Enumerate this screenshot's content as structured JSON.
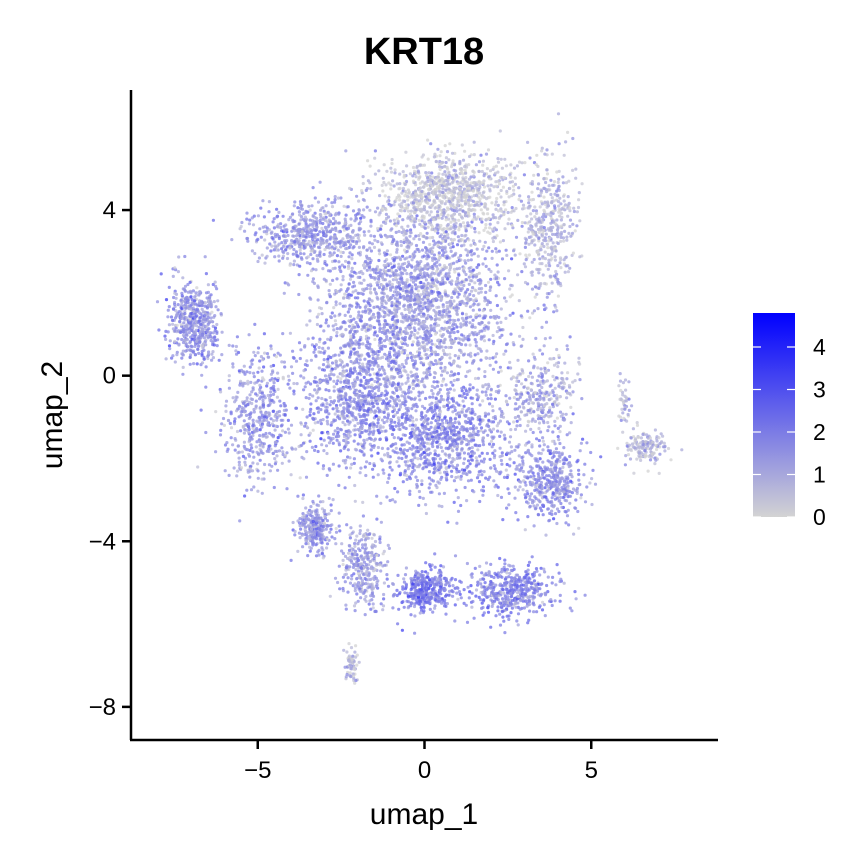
{
  "chart_data": {
    "type": "scatter",
    "title": "KRT18",
    "xlabel": "umap_1",
    "ylabel": "umap_2",
    "xlim": [
      -8.8,
      8.8
    ],
    "ylim": [
      -8.8,
      6.9
    ],
    "xticks": [
      -5,
      0,
      5
    ],
    "xtick_labels": [
      "−5",
      "0",
      "5"
    ],
    "yticks": [
      -8,
      -4,
      0,
      4
    ],
    "ytick_labels": [
      "−8",
      "−4",
      "0",
      "4"
    ],
    "grid": false,
    "legend": {
      "placement": "right",
      "type": "continuous colorbar",
      "range": [
        0,
        4.8
      ],
      "ticks": [
        0,
        1,
        2,
        3,
        4
      ],
      "tick_labels": [
        "0",
        "1",
        "2",
        "3",
        "4"
      ],
      "low_color": "#d3d3d3",
      "high_color": "#0000ff"
    },
    "clusters": [
      {
        "center": [
          -0.2,
          1.8
        ],
        "spread": [
          2.6,
          2.2
        ],
        "n": 2200,
        "expr": 1.3
      },
      {
        "center": [
          0.8,
          4.4
        ],
        "spread": [
          1.8,
          0.9
        ],
        "n": 800,
        "expr": 0.3
      },
      {
        "center": [
          3.7,
          3.6
        ],
        "spread": [
          0.8,
          1.5
        ],
        "n": 400,
        "expr": 0.8
      },
      {
        "center": [
          -3.5,
          3.4
        ],
        "spread": [
          1.5,
          0.7
        ],
        "n": 500,
        "expr": 1.4
      },
      {
        "center": [
          -6.9,
          1.3
        ],
        "spread": [
          0.7,
          0.9
        ],
        "n": 500,
        "expr": 1.5
      },
      {
        "center": [
          -5.0,
          -1.0
        ],
        "spread": [
          1.0,
          1.4
        ],
        "n": 450,
        "expr": 1.5
      },
      {
        "center": [
          -2.0,
          -0.5
        ],
        "spread": [
          1.6,
          1.6
        ],
        "n": 900,
        "expr": 1.6
      },
      {
        "center": [
          0.7,
          -1.5
        ],
        "spread": [
          2.0,
          1.2
        ],
        "n": 900,
        "expr": 1.7
      },
      {
        "center": [
          3.8,
          -2.6
        ],
        "spread": [
          0.9,
          0.8
        ],
        "n": 400,
        "expr": 1.6
      },
      {
        "center": [
          3.5,
          -0.5
        ],
        "spread": [
          1.0,
          1.0
        ],
        "n": 300,
        "expr": 1.0
      },
      {
        "center": [
          -3.3,
          -3.7
        ],
        "spread": [
          0.5,
          0.5
        ],
        "n": 250,
        "expr": 1.5
      },
      {
        "center": [
          -1.8,
          -4.6
        ],
        "spread": [
          0.6,
          0.8
        ],
        "n": 300,
        "expr": 1.3
      },
      {
        "center": [
          0.0,
          -5.2
        ],
        "spread": [
          0.8,
          0.5
        ],
        "n": 350,
        "expr": 2.0
      },
      {
        "center": [
          2.6,
          -5.2
        ],
        "spread": [
          1.2,
          0.6
        ],
        "n": 450,
        "expr": 1.8
      },
      {
        "center": [
          6.6,
          -1.7
        ],
        "spread": [
          0.6,
          0.4
        ],
        "n": 150,
        "expr": 0.7
      },
      {
        "center": [
          6.0,
          -0.6
        ],
        "spread": [
          0.15,
          0.6
        ],
        "n": 40,
        "expr": 0.6
      },
      {
        "center": [
          -2.2,
          -7.0
        ],
        "spread": [
          0.2,
          0.4
        ],
        "n": 60,
        "expr": 0.6
      }
    ]
  }
}
